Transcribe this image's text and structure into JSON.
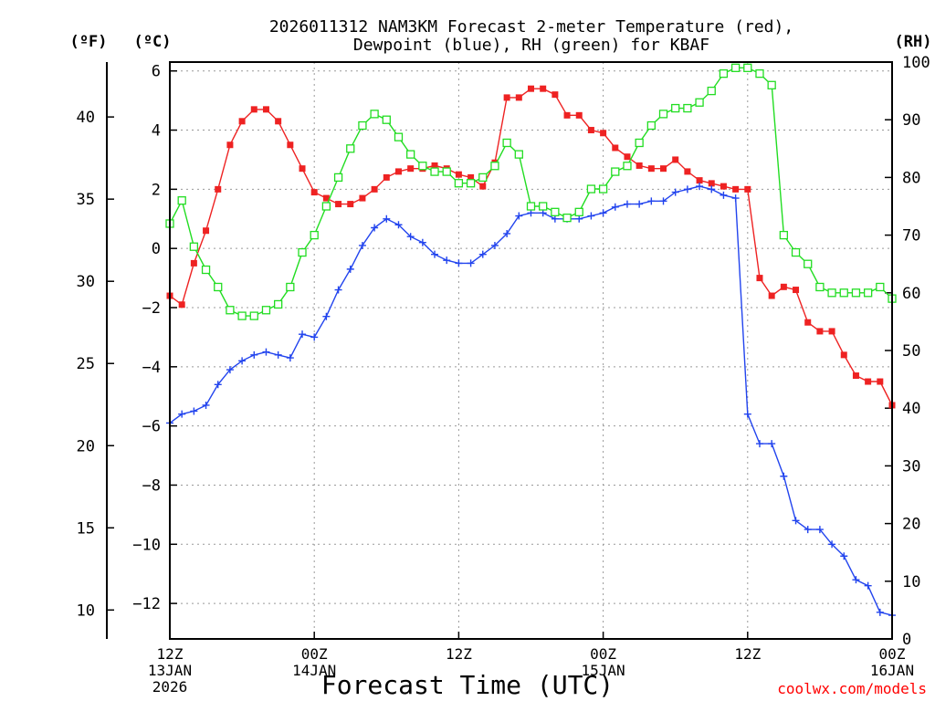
{
  "chart_data": {
    "type": "line",
    "title": [
      "2026011312 NAM3KM Forecast 2-meter Temperature (red),",
      "Dewpoint (blue), RH (green) for KBAF"
    ],
    "xlabel": "Forecast Time (UTC)",
    "credit": "coolwx.com/models",
    "units": {
      "fahrenheit": "(ºF)",
      "celsius": "(ºC)",
      "rh": "(RH)"
    },
    "x_range_hours": [
      0,
      60
    ],
    "x_ticks": [
      {
        "h": 0,
        "lines": [
          "12Z",
          "13JAN",
          "2026"
        ]
      },
      {
        "h": 12,
        "lines": [
          "00Z",
          "14JAN"
        ]
      },
      {
        "h": 24,
        "lines": [
          "12Z"
        ]
      },
      {
        "h": 36,
        "lines": [
          "00Z",
          "15JAN"
        ]
      },
      {
        "h": 48,
        "lines": [
          "12Z"
        ]
      },
      {
        "h": 60,
        "lines": [
          "00Z",
          "16JAN"
        ]
      }
    ],
    "ylim_c": [
      -13.2,
      6.3
    ],
    "celsius_ticks": [
      6,
      4,
      2,
      0,
      -2,
      -4,
      -6,
      -8,
      -10,
      -12
    ],
    "celsius_tick_labels": [
      "6",
      "4",
      "2",
      "0",
      "−2",
      "−4",
      "−6",
      "−8",
      "−10",
      "−12"
    ],
    "fahrenheit_ticks": [
      40,
      35,
      30,
      25,
      20,
      15,
      10
    ],
    "ylim_rh": [
      0,
      100
    ],
    "rh_ticks": [
      100,
      90,
      80,
      70,
      60,
      50,
      40,
      30,
      20,
      10,
      0
    ],
    "x_hours": [
      0,
      1,
      2,
      3,
      4,
      5,
      6,
      7,
      8,
      9,
      10,
      11,
      12,
      13,
      14,
      15,
      16,
      17,
      18,
      19,
      20,
      21,
      22,
      23,
      24,
      25,
      26,
      27,
      28,
      29,
      30,
      31,
      32,
      33,
      34,
      35,
      36,
      37,
      38,
      39,
      40,
      41,
      42,
      43,
      44,
      45,
      46,
      47,
      48,
      49,
      50,
      51,
      52,
      53,
      54,
      55,
      56,
      57,
      58,
      59,
      60
    ],
    "series": [
      {
        "name": "Temperature",
        "unit": "C",
        "color": "#ee2222",
        "marker": "filled-square",
        "values": [
          -1.6,
          -1.9,
          -0.5,
          0.6,
          2.0,
          3.5,
          4.3,
          4.7,
          4.7,
          4.3,
          3.5,
          2.7,
          1.9,
          1.7,
          1.5,
          1.5,
          1.7,
          2.0,
          2.4,
          2.6,
          2.7,
          2.7,
          2.8,
          2.7,
          2.5,
          2.4,
          2.1,
          2.9,
          5.1,
          5.1,
          5.4,
          5.4,
          5.2,
          4.5,
          4.5,
          4.0,
          3.9,
          3.4,
          3.1,
          2.8,
          2.7,
          2.7,
          3.0,
          2.6,
          2.3,
          2.2,
          2.1,
          2.0,
          2.0,
          -1.0,
          -1.6,
          -1.3,
          -1.4,
          -2.5,
          -2.8,
          -2.8,
          -3.6,
          -4.3,
          -4.5,
          -4.5,
          -5.3
        ]
      },
      {
        "name": "Dewpoint",
        "unit": "C",
        "color": "#2244ee",
        "marker": "plus",
        "values": [
          -5.9,
          -5.6,
          -5.5,
          -5.3,
          -4.6,
          -4.1,
          -3.8,
          -3.6,
          -3.5,
          -3.6,
          -3.7,
          -2.9,
          -3.0,
          -2.3,
          -1.4,
          -0.7,
          0.1,
          0.7,
          1.0,
          0.8,
          0.4,
          0.2,
          -0.2,
          -0.4,
          -0.5,
          -0.5,
          -0.2,
          0.1,
          0.5,
          1.1,
          1.2,
          1.2,
          1.0,
          1.0,
          1.0,
          1.1,
          1.2,
          1.4,
          1.5,
          1.5,
          1.6,
          1.6,
          1.9,
          2.0,
          2.1,
          2.0,
          1.8,
          1.7,
          -5.6,
          -6.6,
          -6.6,
          -7.7,
          -9.2,
          -9.5,
          -9.5,
          -10.0,
          -10.4,
          -11.2,
          -11.4,
          -12.3,
          -12.4
        ]
      },
      {
        "name": "RH",
        "unit": "%",
        "color": "#22dd22",
        "marker": "open-square",
        "values": [
          72,
          76,
          68,
          64,
          61,
          57,
          56,
          56,
          57,
          58,
          61,
          67,
          70,
          75,
          80,
          85,
          89,
          91,
          90,
          87,
          84,
          82,
          81,
          81,
          79,
          79,
          80,
          82,
          86,
          84,
          75,
          75,
          74,
          73,
          74,
          78,
          78,
          81,
          82,
          86,
          89,
          91,
          92,
          92,
          93,
          95,
          98,
          99,
          99,
          98,
          96,
          70,
          67,
          65,
          61,
          60,
          60,
          60,
          60,
          61,
          59
        ]
      }
    ]
  }
}
